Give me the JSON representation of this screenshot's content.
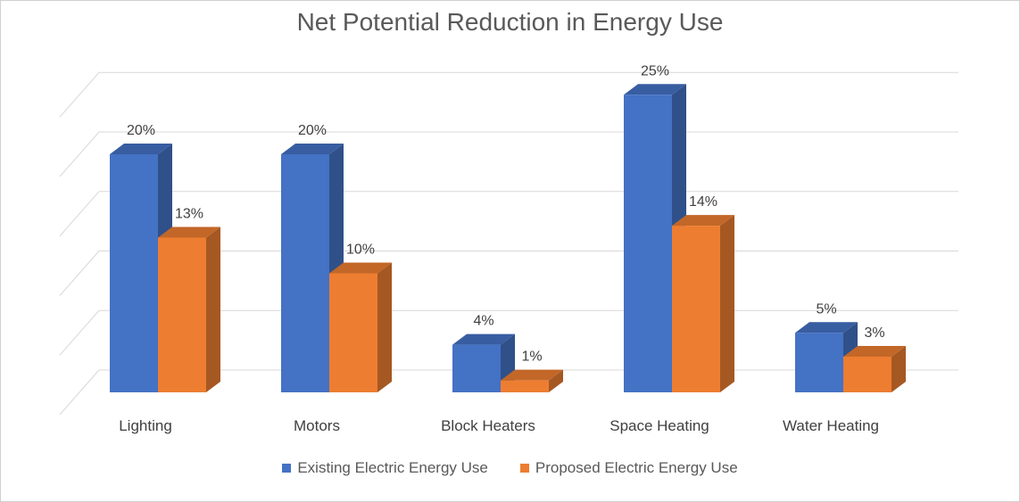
{
  "chart_data": {
    "type": "bar",
    "title": "Net Potential Reduction in Energy Use",
    "categories": [
      "Lighting",
      "Motors",
      "Block Heaters",
      "Space Heating",
      "Water Heating"
    ],
    "series": [
      {
        "name": "Existing Electric Energy Use",
        "values": [
          20,
          20,
          4,
          25,
          5
        ],
        "labels": [
          "20%",
          "20%",
          "4%",
          "25%",
          "5%"
        ],
        "color": "#4472C4"
      },
      {
        "name": "Proposed Electric Energy Use",
        "values": [
          13,
          10,
          1,
          14,
          3
        ],
        "labels": [
          "13%",
          "10%",
          "1%",
          "14%",
          "3%"
        ],
        "color": "#ED7D31"
      }
    ],
    "ylim": [
      0,
      25
    ],
    "grid": true,
    "style": "3d-clustered-column",
    "legend": "bottom"
  }
}
